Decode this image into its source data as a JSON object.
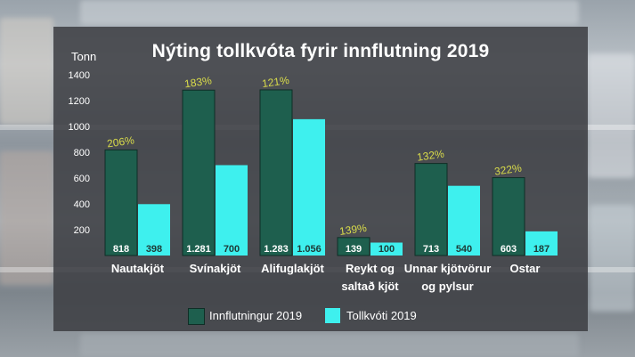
{
  "chart_data": {
    "type": "bar",
    "title": "Nýting tollkvóta fyrir innflutning 2019",
    "ylabel": "Tonn",
    "ylim": [
      0,
      1400
    ],
    "yticks": [
      200,
      400,
      600,
      800,
      1000,
      1200,
      1400
    ],
    "categories": [
      [
        "Nautakjöt"
      ],
      [
        "Svínakjöt"
      ],
      [
        "Alifuglakjöt"
      ],
      [
        "Reykt og",
        "saltað kjöt"
      ],
      [
        "Unnar kjötvörur",
        "og pylsur"
      ],
      [
        "Ostar"
      ]
    ],
    "series": [
      {
        "name": "Innflutningur 2019",
        "color": "#1e5f4e",
        "values": [
          818,
          1281,
          1283,
          139,
          713,
          603
        ],
        "labels": [
          "818",
          "1.281",
          "1.283",
          "139",
          "713",
          "603"
        ]
      },
      {
        "name": "Tollkvóti 2019",
        "color": "#3ef0ee",
        "values": [
          398,
          700,
          1056,
          100,
          540,
          187
        ],
        "labels": [
          "398",
          "700",
          "1.056",
          "100",
          "540",
          "187"
        ]
      }
    ],
    "annotations": [
      "206%",
      "183%",
      "121%",
      "139%",
      "132%",
      "322%"
    ],
    "annotation_color": "#d9dc4a",
    "legend_position": "bottom",
    "grid": false
  }
}
